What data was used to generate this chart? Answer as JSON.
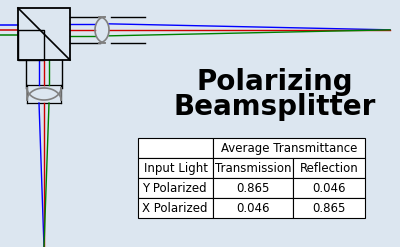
{
  "title_line1": "Polarizing",
  "title_line2": "Beamsplitter",
  "title_fontsize": 20,
  "title_fontweight": "bold",
  "title_color": "#000000",
  "background_color": "#dce6f0",
  "table_header_top": "Average Transmittance",
  "table_col_headers": [
    "Input Light",
    "Transmission",
    "Reflection"
  ],
  "table_rows": [
    [
      "Y Polarized",
      "0.865",
      "0.046"
    ],
    [
      "X Polarized",
      "0.046",
      "0.865"
    ]
  ],
  "beam_colors": [
    "blue",
    "#cc0000",
    "green"
  ],
  "fig_width": 4.0,
  "fig_height": 2.47,
  "dpi": 100
}
